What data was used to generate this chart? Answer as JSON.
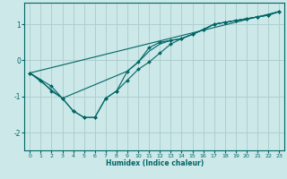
{
  "xlabel": "Humidex (Indice chaleur)",
  "ylabel": "",
  "bg_color": "#cce8e8",
  "line_color": "#006666",
  "grid_color": "#aacccc",
  "xlim": [
    -0.5,
    23.5
  ],
  "ylim": [
    -2.5,
    1.6
  ],
  "xticks": [
    0,
    1,
    2,
    3,
    4,
    5,
    6,
    7,
    8,
    9,
    10,
    11,
    12,
    13,
    14,
    15,
    16,
    17,
    18,
    19,
    20,
    21,
    22,
    23
  ],
  "yticks": [
    -2,
    -1,
    0,
    1
  ],
  "series": [
    {
      "x": [
        0,
        1,
        2,
        3,
        4,
        5,
        6,
        7,
        8,
        9,
        10,
        11,
        12,
        13,
        14,
        15,
        16,
        17,
        18,
        19,
        20,
        21,
        22,
        23
      ],
      "y": [
        -0.35,
        -0.55,
        -0.85,
        -1.05,
        -1.4,
        -1.58,
        -1.58,
        -1.05,
        -0.85,
        -0.55,
        -0.25,
        -0.05,
        0.2,
        0.45,
        0.6,
        0.72,
        0.85,
        1.0,
        1.05,
        1.1,
        1.15,
        1.2,
        1.25,
        1.35
      ],
      "marker": "D",
      "markersize": 2.0
    },
    {
      "x": [
        0,
        3,
        9,
        10,
        11,
        12,
        13,
        14,
        15,
        16,
        17,
        18,
        19,
        20,
        21,
        22,
        23
      ],
      "y": [
        -0.35,
        -1.05,
        -0.3,
        -0.05,
        0.25,
        0.45,
        0.55,
        0.6,
        0.72,
        0.85,
        1.0,
        1.05,
        1.1,
        1.15,
        1.2,
        1.25,
        1.35
      ],
      "marker": null,
      "markersize": 0
    },
    {
      "x": [
        0,
        2,
        3,
        4,
        5,
        6,
        7,
        8,
        9,
        10,
        11,
        12,
        13,
        14,
        15,
        16,
        17,
        18,
        19,
        20,
        21,
        22,
        23
      ],
      "y": [
        -0.35,
        -0.72,
        -1.05,
        -1.4,
        -1.58,
        -1.58,
        -1.05,
        -0.85,
        -0.3,
        -0.05,
        0.35,
        0.5,
        0.55,
        0.6,
        0.72,
        0.85,
        1.0,
        1.05,
        1.1,
        1.15,
        1.2,
        1.25,
        1.35
      ],
      "marker": "D",
      "markersize": 2.0
    },
    {
      "x": [
        0,
        23
      ],
      "y": [
        -0.35,
        1.35
      ],
      "marker": null,
      "markersize": 0
    }
  ]
}
